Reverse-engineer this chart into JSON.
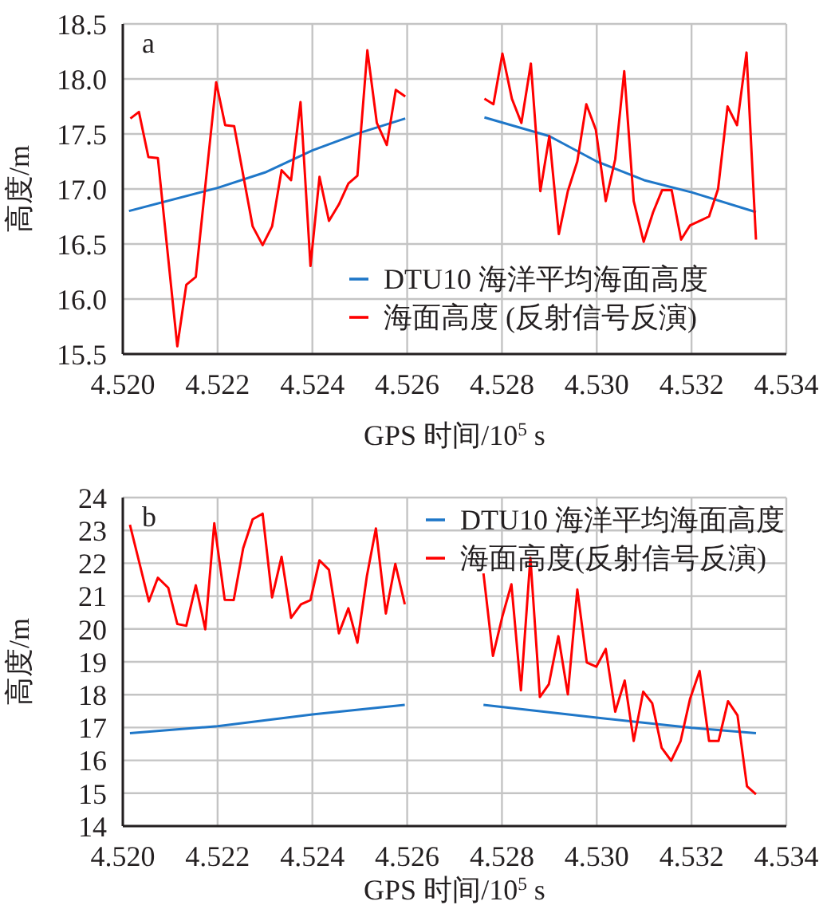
{
  "chart_data": [
    {
      "type": "line",
      "xlabel": "GPS 时间/10$^{5}$ s",
      "ylabel": "高度/m",
      "annotations": [
        "a"
      ],
      "grid": true,
      "legend": "bottom right",
      "xlim": [
        4.52,
        4.534
      ],
      "xticks": [
        {
          "value": 4.52,
          "label": "4.520"
        },
        {
          "value": 4.522,
          "label": "4.522"
        },
        {
          "value": 4.524,
          "label": "4.524"
        },
        {
          "value": 4.526,
          "label": "4.526"
        },
        {
          "value": 4.528,
          "label": "4.528"
        },
        {
          "value": 4.53,
          "label": "4.530"
        },
        {
          "value": 4.532,
          "label": "4.532"
        },
        {
          "value": 4.534,
          "label": "4.534"
        }
      ],
      "ylim": [
        15.5,
        18.5
      ],
      "yticks": [
        15.5,
        {
          "value": 16,
          "label": "16.0"
        },
        16.5,
        {
          "value": 17,
          "label": "17.0"
        },
        17.5,
        {
          "value": 18,
          "label": "18.0"
        },
        18.5
      ],
      "series": [
        {
          "name": "DTU10 海洋平均海面高度",
          "color": "#1f77c8",
          "x": [
            4.52013,
            4.522,
            4.523,
            4.524,
            4.525,
            4.52596,
            4.5268,
            4.52763,
            4.529,
            4.53,
            4.531,
            4.532,
            4.53336
          ],
          "values": [
            16.8,
            17.01,
            17.15,
            17.35,
            17.51,
            17.64,
            null,
            17.65,
            17.48,
            17.25,
            17.08,
            16.97,
            16.79
          ]
        },
        {
          "name": "海面高度 (反射信号反演)",
          "color": "#ff0000",
          "x": [
            4.52016,
            4.52034,
            4.52054,
            4.52074,
            4.52115,
            4.52134,
            4.52154,
            4.52197,
            4.52216,
            4.52235,
            4.52274,
            4.52295,
            4.52315,
            4.52335,
            4.52355,
            4.52375,
            4.52396,
            4.52415,
            4.52435,
            4.52456,
            4.52476,
            4.52495,
            4.52516,
            4.52536,
            4.52557,
            4.52576,
            4.52596,
            4.5268,
            4.52763,
            4.52782,
            4.52801,
            4.52821,
            4.52841,
            4.52861,
            4.52881,
            4.529,
            4.5292,
            4.52939,
            4.52959,
            4.52978,
            4.52998,
            4.53019,
            4.53039,
            4.53058,
            4.53078,
            4.53099,
            4.53119,
            4.53138,
            4.53158,
            4.53178,
            4.53197,
            4.53217,
            4.53237,
            4.53256,
            4.53276,
            4.53296,
            4.53316,
            4.53336
          ],
          "values": [
            17.64,
            17.7,
            17.29,
            17.28,
            15.57,
            16.13,
            16.2,
            17.97,
            17.58,
            17.57,
            16.66,
            16.49,
            16.66,
            17.17,
            17.08,
            17.79,
            16.3,
            17.11,
            16.71,
            16.86,
            17.05,
            17.12,
            18.26,
            17.6,
            17.4,
            17.9,
            17.84,
            null,
            17.82,
            17.77,
            18.23,
            17.82,
            17.6,
            18.14,
            16.98,
            17.48,
            16.59,
            16.98,
            17.25,
            17.77,
            17.54,
            16.89,
            17.27,
            18.07,
            16.89,
            16.52,
            16.79,
            16.99,
            16.99,
            16.54,
            16.67,
            16.71,
            16.75,
            17.0,
            17.75,
            17.58,
            18.24,
            16.54
          ]
        }
      ]
    },
    {
      "type": "line",
      "xlabel": "GPS 时间/10$^{5}$ s",
      "ylabel": "高度/m",
      "annotations": [
        "b"
      ],
      "grid": true,
      "legend": "top right",
      "xlim": [
        4.52,
        4.534
      ],
      "xticks": [
        {
          "value": 4.52,
          "label": "4.520"
        },
        {
          "value": 4.522,
          "label": "4.522"
        },
        {
          "value": 4.524,
          "label": "4.524"
        },
        {
          "value": 4.526,
          "label": "4.526"
        },
        {
          "value": 4.528,
          "label": "4.528"
        },
        {
          "value": 4.53,
          "label": "4.530"
        },
        {
          "value": 4.532,
          "label": "4.532"
        },
        {
          "value": 4.534,
          "label": "4.534"
        }
      ],
      "ylim": [
        14,
        24
      ],
      "yticks": [
        14,
        15,
        16,
        17,
        18,
        19,
        20,
        21,
        22,
        23,
        24
      ],
      "series": [
        {
          "name": "DTU10 海洋平均海面高度",
          "color": "#1f77c8",
          "x": [
            4.52015,
            4.522,
            4.524,
            4.52595,
            4.5268,
            4.52761,
            4.53,
            4.532,
            4.53336
          ],
          "values": [
            16.83,
            17.04,
            17.4,
            17.69,
            null,
            17.69,
            17.3,
            16.99,
            16.83
          ]
        },
        {
          "name": "海面高度(反射信号反演)",
          "color": "#ff0000",
          "x": [
            4.52015,
            4.52035,
            4.52055,
            4.52074,
            4.52096,
            4.52115,
            4.52134,
            4.52154,
            4.52174,
            4.52193,
            4.52215,
            4.52234,
            4.52254,
            4.52274,
            4.52295,
            4.52315,
            4.52335,
            4.52355,
            4.52376,
            4.52396,
            4.52415,
            4.52435,
            4.52456,
            4.52476,
            4.52495,
            4.52515,
            4.52534,
            4.52555,
            4.52575,
            4.52595,
            4.5268,
            4.52761,
            4.52781,
            4.52801,
            4.5282,
            4.5284,
            4.5286,
            4.5288,
            4.52899,
            4.52919,
            4.52939,
            4.52959,
            4.52979,
            4.52999,
            4.53019,
            4.53039,
            4.53059,
            4.53078,
            4.53098,
            4.53117,
            4.53137,
            4.53157,
            4.53177,
            4.53197,
            4.53217,
            4.53237,
            4.53257,
            4.53277,
            4.53297,
            4.53317,
            4.53336
          ],
          "values": [
            23.17,
            22.01,
            20.84,
            21.56,
            21.25,
            20.15,
            20.1,
            21.33,
            19.99,
            23.22,
            20.89,
            20.88,
            22.46,
            23.34,
            23.51,
            20.96,
            22.2,
            20.34,
            20.75,
            20.88,
            22.09,
            21.8,
            19.87,
            20.63,
            19.58,
            21.61,
            23.06,
            20.47,
            21.98,
            20.75,
            null,
            21.69,
            19.18,
            20.39,
            21.36,
            18.13,
            22.17,
            17.93,
            18.32,
            19.78,
            18.01,
            21.2,
            18.98,
            18.85,
            19.39,
            17.48,
            18.43,
            16.59,
            18.09,
            17.74,
            16.38,
            15.99,
            16.59,
            17.88,
            18.72,
            16.59,
            16.59,
            17.8,
            17.37,
            15.21,
            14.97
          ]
        }
      ]
    }
  ]
}
